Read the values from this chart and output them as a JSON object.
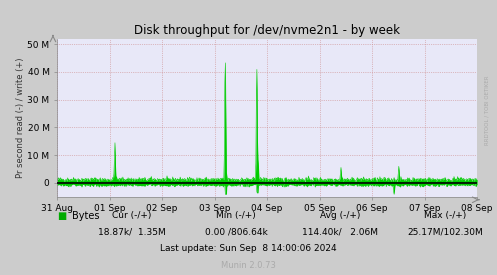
{
  "title": "Disk throughput for /dev/nvme2n1 - by week",
  "ylabel": "Pr second read (-) / write (+)",
  "xlabel_ticks": [
    "31 Aug",
    "01 Sep",
    "02 Sep",
    "03 Sep",
    "04 Sep",
    "05 Sep",
    "06 Sep",
    "07 Sep",
    "08 Sep"
  ],
  "ylim": [
    -5000000,
    52000000
  ],
  "yticks": [
    0,
    10000000,
    20000000,
    30000000,
    40000000,
    50000000
  ],
  "ytick_labels": [
    "0",
    "10 M",
    "20 M",
    "30 M",
    "40 M",
    "50 M"
  ],
  "bg_color": "#d0d0d0",
  "plot_bg_color": "#e8e8ff",
  "grid_color": "#ff8888",
  "line_color_green": "#00cc00",
  "line_color_black": "#000000",
  "legend_label": "Bytes",
  "legend_color": "#00cc00",
  "footer_last": "Last update: Sun Sep  8 14:00:06 2024",
  "munin_version": "Munin 2.0.73",
  "watermark": "RRDTOOL / TOBI OETIKER",
  "n_points": 800
}
